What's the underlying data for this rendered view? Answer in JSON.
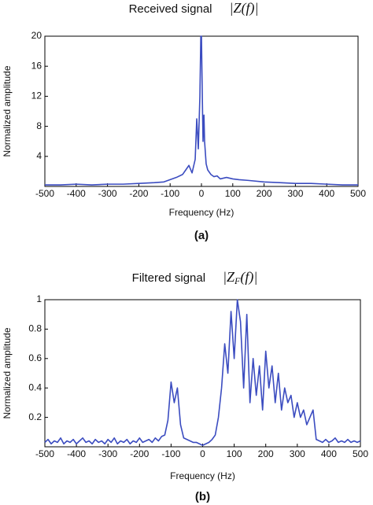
{
  "chart_data": [
    {
      "type": "line",
      "title": "Received signal",
      "title_formula": {
        "main": "|Z(f)|"
      },
      "x_label": "Frequency (Hz)",
      "y_label": "Normalized amplitude",
      "panel_label": "(a)",
      "xlim": [
        -500,
        500
      ],
      "xticks": [
        -500,
        -400,
        -300,
        -200,
        -100,
        0,
        100,
        200,
        300,
        400,
        500
      ],
      "ylim": [
        0,
        20
      ],
      "yticks": [
        4,
        8,
        12,
        16,
        20
      ],
      "series": [
        {
          "color": "#3b4cc0",
          "x": [
            -500,
            -450,
            -400,
            -350,
            -300,
            -250,
            -200,
            -150,
            -120,
            -100,
            -80,
            -60,
            -50,
            -40,
            -30,
            -20,
            -15,
            -10,
            -5,
            -2,
            0,
            2,
            5,
            8,
            10,
            15,
            20,
            30,
            40,
            50,
            60,
            80,
            100,
            120,
            150,
            200,
            250,
            300,
            350,
            400,
            450,
            500
          ],
          "values": [
            0.2,
            0.2,
            0.3,
            0.2,
            0.3,
            0.3,
            0.4,
            0.5,
            0.6,
            0.9,
            1.2,
            1.6,
            2.2,
            2.8,
            1.8,
            3.6,
            9,
            5,
            12,
            20,
            20,
            14,
            6,
            9.5,
            6,
            3,
            2.2,
            1.6,
            1.3,
            1.4,
            1,
            1.2,
            1,
            0.9,
            0.8,
            0.6,
            0.5,
            0.4,
            0.4,
            0.3,
            0.2,
            0.2
          ]
        }
      ]
    },
    {
      "type": "line",
      "title": "Filtered signal",
      "title_formula": {
        "main": "|Z",
        "sub": "F",
        "rest": "(f)|"
      },
      "x_label": "Frequency (Hz)",
      "y_label": "Normalized amplitude",
      "panel_label": "(b)",
      "xlim": [
        -500,
        500
      ],
      "xticks": [
        -500,
        -400,
        -300,
        -200,
        -100,
        0,
        100,
        200,
        300,
        400,
        500
      ],
      "ylim": [
        0,
        1
      ],
      "yticks": [
        0.2,
        0.4,
        0.6,
        0.8,
        1
      ],
      "series": [
        {
          "color": "#3b4cc0",
          "x": [
            -500,
            -490,
            -480,
            -470,
            -460,
            -450,
            -440,
            -430,
            -420,
            -410,
            -400,
            -390,
            -380,
            -370,
            -360,
            -350,
            -340,
            -330,
            -320,
            -310,
            -300,
            -290,
            -280,
            -270,
            -260,
            -250,
            -240,
            -230,
            -220,
            -210,
            -200,
            -190,
            -180,
            -170,
            -160,
            -150,
            -140,
            -130,
            -120,
            -110,
            -100,
            -90,
            -80,
            -70,
            -60,
            -50,
            -40,
            -30,
            -20,
            -10,
            0,
            10,
            20,
            30,
            40,
            50,
            60,
            70,
            80,
            90,
            100,
            110,
            120,
            130,
            140,
            150,
            160,
            170,
            180,
            190,
            200,
            210,
            220,
            230,
            240,
            250,
            260,
            270,
            280,
            290,
            300,
            310,
            320,
            330,
            340,
            350,
            360,
            370,
            380,
            390,
            400,
            410,
            420,
            430,
            440,
            450,
            460,
            470,
            480,
            490,
            500
          ],
          "values": [
            0.03,
            0.05,
            0.02,
            0.04,
            0.03,
            0.06,
            0.02,
            0.04,
            0.03,
            0.05,
            0.02,
            0.04,
            0.06,
            0.03,
            0.04,
            0.02,
            0.05,
            0.03,
            0.04,
            0.02,
            0.05,
            0.03,
            0.06,
            0.02,
            0.04,
            0.03,
            0.05,
            0.02,
            0.04,
            0.03,
            0.06,
            0.03,
            0.04,
            0.05,
            0.03,
            0.06,
            0.04,
            0.07,
            0.08,
            0.18,
            0.44,
            0.3,
            0.4,
            0.15,
            0.06,
            0.05,
            0.04,
            0.03,
            0.03,
            0.02,
            0.01,
            0.02,
            0.03,
            0.05,
            0.08,
            0.2,
            0.4,
            0.7,
            0.5,
            0.92,
            0.6,
            1,
            0.85,
            0.4,
            0.9,
            0.3,
            0.6,
            0.35,
            0.55,
            0.25,
            0.65,
            0.4,
            0.55,
            0.3,
            0.5,
            0.25,
            0.4,
            0.3,
            0.35,
            0.2,
            0.3,
            0.2,
            0.25,
            0.15,
            0.2,
            0.25,
            0.05,
            0.04,
            0.03,
            0.05,
            0.03,
            0.04,
            0.06,
            0.03,
            0.04,
            0.03,
            0.05,
            0.03,
            0.04,
            0.03,
            0.04
          ]
        }
      ]
    }
  ]
}
